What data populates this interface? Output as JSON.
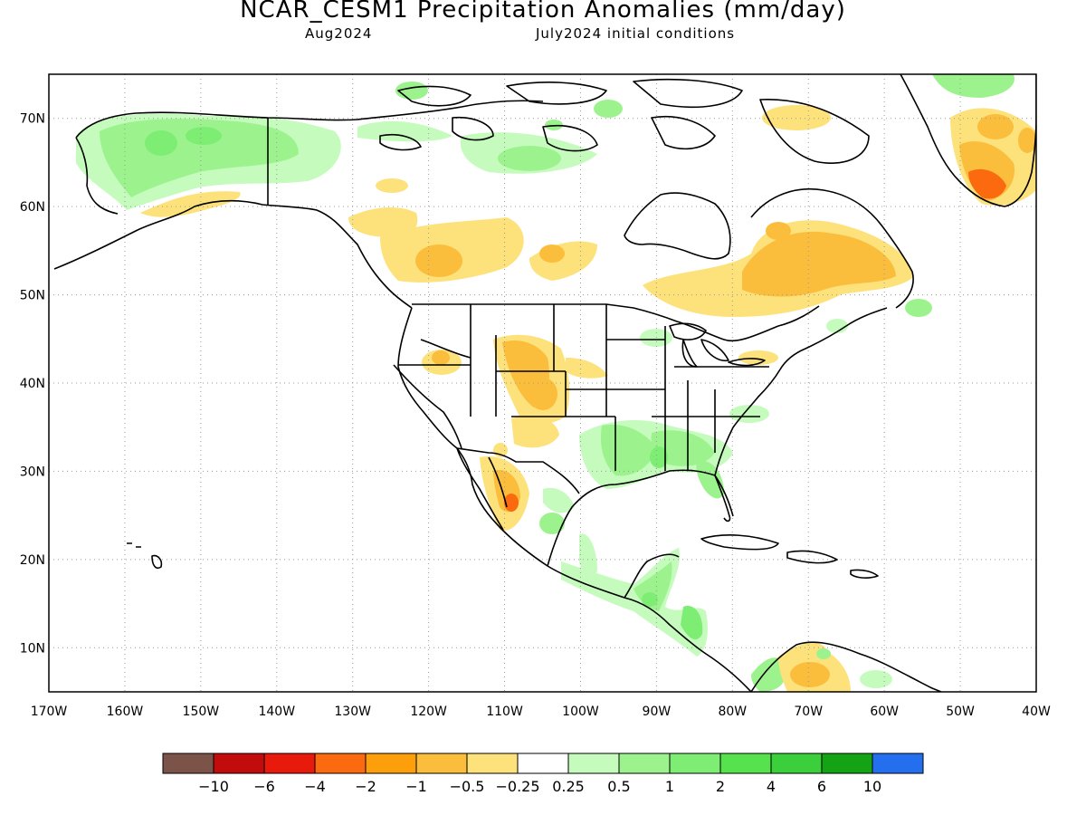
{
  "title": "NCAR_CESM1 Precipitation Anomalies (mm/day)",
  "subtitle_left": "Aug2024",
  "subtitle_right": "July2024 initial conditions",
  "map": {
    "lat_labels": [
      "70N",
      "60N",
      "50N",
      "40N",
      "30N",
      "20N",
      "10N"
    ],
    "lon_labels": [
      "170W",
      "160W",
      "150W",
      "140W",
      "130W",
      "120W",
      "110W",
      "100W",
      "90W",
      "80W",
      "70W",
      "60W",
      "50W",
      "40W"
    ],
    "grid": "dotted",
    "lat_range": [
      5,
      75
    ],
    "lon_range": [
      -170,
      -40
    ]
  },
  "colorbar": {
    "colors": [
      "#7b5348",
      "#c20c0c",
      "#e81a0c",
      "#fb6a0e",
      "#fc9f0b",
      "#fbbd3c",
      "#fde17a",
      "#ffffff",
      "#c6fbbe",
      "#9cf38e",
      "#7eed73",
      "#56e24d",
      "#3bcf3b",
      "#14a314",
      "#236fee"
    ],
    "labels": [
      "−10",
      "−6",
      "−4",
      "−2",
      "−1",
      "−0.5",
      "−0.25",
      "0.25",
      "0.5",
      "1",
      "2",
      "4",
      "6",
      "10"
    ]
  },
  "anomaly_regions": [
    {
      "region": "Alaska",
      "sign": "wet",
      "level": 0.5
    },
    {
      "region": "Greenland south",
      "sign": "dry",
      "level": -2
    },
    {
      "region": "Quebec / Labrador",
      "sign": "dry",
      "level": -1
    },
    {
      "region": "Western Canada",
      "sign": "dry",
      "level": -0.5
    },
    {
      "region": "Colorado / Wyoming",
      "sign": "dry",
      "level": -1
    },
    {
      "region": "Northwest Mexico",
      "sign": "dry",
      "level": -1
    },
    {
      "region": "US Gulf Coast",
      "sign": "wet",
      "level": 1
    },
    {
      "region": "Central America",
      "sign": "wet",
      "level": 1
    },
    {
      "region": "Northern South America",
      "sign": "mixed",
      "level": 0.5
    }
  ]
}
